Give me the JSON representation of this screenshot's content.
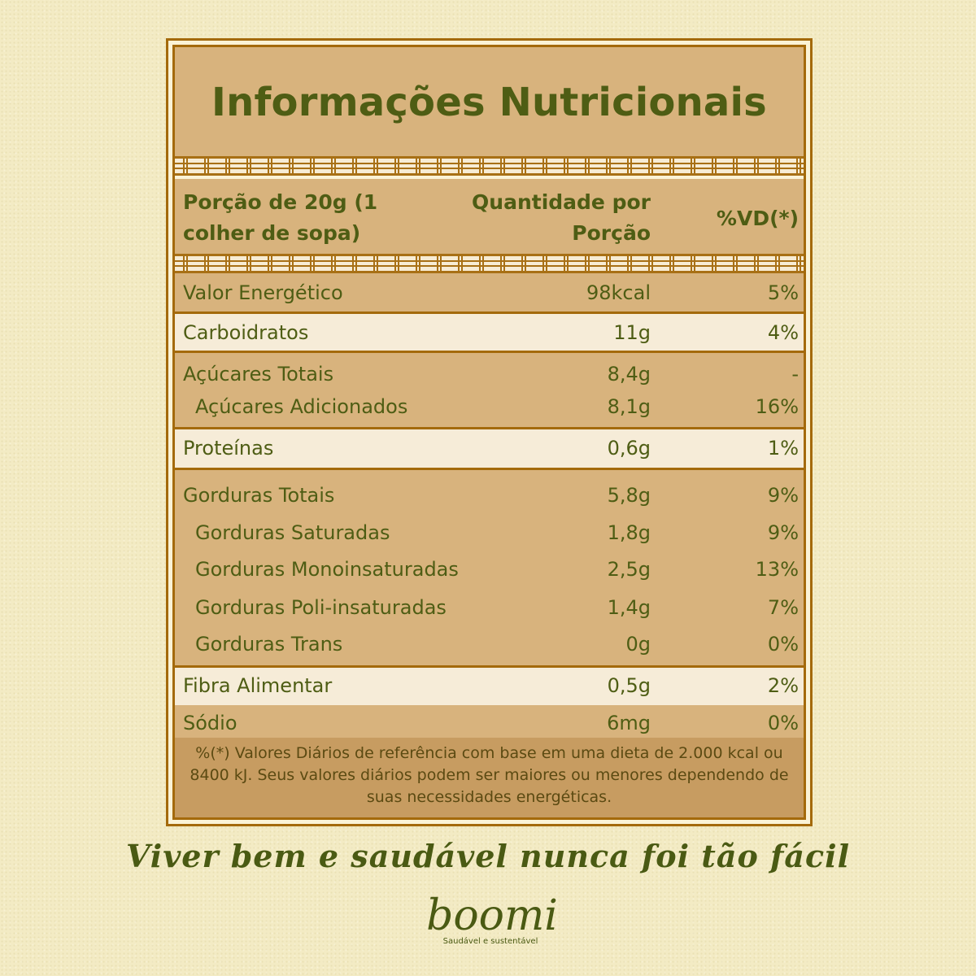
{
  "title": "Informações Nutricionais",
  "header": {
    "portion": "Porção de 20g (1 colher de sopa)",
    "quantity": "Quantidade por Porção",
    "vd": "%VD(*)"
  },
  "rows": [
    {
      "name": "Valor Energético",
      "qty": "98kcal",
      "vd": "5%"
    },
    {
      "name": "Carboidratos",
      "qty": "11g",
      "vd": "4%"
    },
    {
      "name": "Açúcares Totais",
      "qty": "8,4g",
      "vd": "-"
    },
    {
      "name": "Açúcares Adicionados",
      "qty": "8,1g",
      "vd": "16%"
    },
    {
      "name": "Proteínas",
      "qty": "0,6g",
      "vd": "1%"
    },
    {
      "name": "Gorduras Totais",
      "qty": "5,8g",
      "vd": "9%"
    },
    {
      "name": "Gorduras Saturadas",
      "qty": "1,8g",
      "vd": "9%"
    },
    {
      "name": "Gorduras Monoinsaturadas",
      "qty": "2,5g",
      "vd": "13%"
    },
    {
      "name": "Gorduras Poli-insaturadas",
      "qty": "1,4g",
      "vd": "7%"
    },
    {
      "name": "Gorduras Trans",
      "qty": "0g",
      "vd": "0%"
    },
    {
      "name": "Fibra Alimentar",
      "qty": "0,5g",
      "vd": "2%"
    },
    {
      "name": "Sódio",
      "qty": "6mg",
      "vd": "0%"
    }
  ],
  "footnote": "%(*) Valores Diários de referência com base em uma dieta de 2.000 kcal ou 8400 kJ. Seus valores diários podem ser maiores ou menores dependendo de suas necessidades energéticas.",
  "slogan": "Viver bem e saudável nunca foi tão fácil",
  "brand": {
    "name": "boomi",
    "tagline": "Saudável e sustentável"
  },
  "colors": {
    "background": "#f3ebc4",
    "border": "#a46a0b",
    "tan": "#d8b37d",
    "light": "#f6ecd8",
    "text": "#4e5d14"
  }
}
